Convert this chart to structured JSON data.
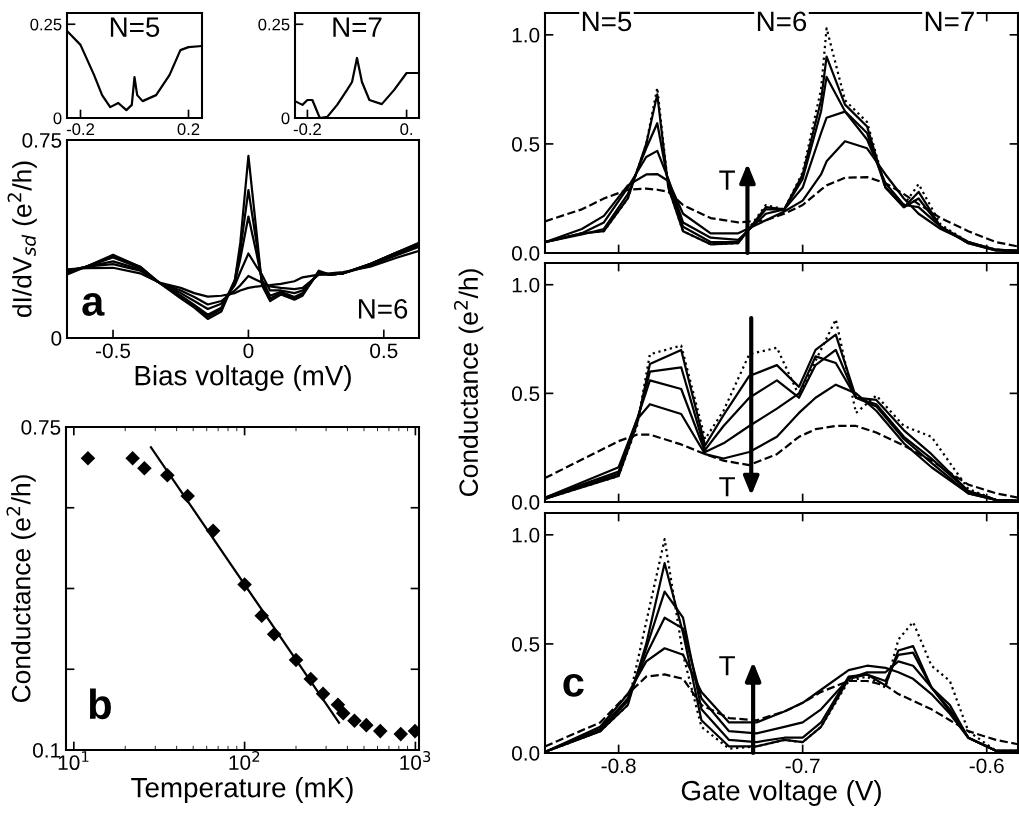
{
  "chart_data": [
    {
      "type": "line",
      "xlabel": "Bias voltage (mV)",
      "ylabel": "dI/dV$_{sd}$ (e$^{2}$/h)",
      "annotations": [
        "a",
        "N=6"
      ],
      "x": [
        -0.67,
        -0.6,
        -0.5,
        -0.4,
        -0.33,
        -0.25,
        -0.2,
        -0.15,
        -0.1,
        -0.05,
        -0.03,
        0,
        0.03,
        0.05,
        0.08,
        0.12,
        0.17,
        0.2,
        0.26,
        0.3,
        0.35,
        0.45,
        0.55,
        0.63
      ],
      "xlim": [
        -0.67,
        0.63
      ],
      "xticks": [
        -0.5,
        0,
        0.5
      ],
      "ylim": [
        0,
        0.75
      ],
      "yticks": [
        0,
        0.75
      ],
      "grid": false,
      "legend": false,
      "series": [
        {
          "color": "#000000",
          "values": [
            0.24,
            0.27,
            0.315,
            0.27,
            0.21,
            0.15,
            0.115,
            0.072,
            0.1,
            0.22,
            0.36,
            0.69,
            0.4,
            0.2,
            0.14,
            0.165,
            0.145,
            0.16,
            0.255,
            0.24,
            0.245,
            0.28,
            0.325,
            0.36
          ]
        },
        {
          "color": "#000000",
          "values": [
            0.245,
            0.27,
            0.31,
            0.27,
            0.21,
            0.155,
            0.12,
            0.08,
            0.11,
            0.22,
            0.33,
            0.56,
            0.36,
            0.21,
            0.15,
            0.17,
            0.15,
            0.165,
            0.25,
            0.24,
            0.245,
            0.28,
            0.325,
            0.36
          ]
        },
        {
          "color": "#000000",
          "values": [
            0.25,
            0.27,
            0.305,
            0.265,
            0.21,
            0.16,
            0.125,
            0.088,
            0.115,
            0.21,
            0.3,
            0.46,
            0.32,
            0.22,
            0.16,
            0.175,
            0.155,
            0.17,
            0.25,
            0.24,
            0.245,
            0.28,
            0.325,
            0.355
          ]
        },
        {
          "color": "#000000",
          "values": [
            0.25,
            0.27,
            0.29,
            0.26,
            0.21,
            0.17,
            0.14,
            0.11,
            0.13,
            0.2,
            0.25,
            0.32,
            0.27,
            0.24,
            0.18,
            0.18,
            0.17,
            0.18,
            0.245,
            0.24,
            0.245,
            0.28,
            0.32,
            0.35
          ]
        },
        {
          "color": "#000000",
          "values": [
            0.255,
            0.27,
            0.28,
            0.255,
            0.21,
            0.18,
            0.155,
            0.127,
            0.14,
            0.18,
            0.2,
            0.235,
            0.22,
            0.21,
            0.195,
            0.19,
            0.185,
            0.19,
            0.24,
            0.24,
            0.245,
            0.275,
            0.315,
            0.345
          ]
        },
        {
          "color": "#000000",
          "values": [
            0.26,
            0.265,
            0.266,
            0.245,
            0.21,
            0.19,
            0.17,
            0.157,
            0.16,
            0.17,
            0.18,
            0.19,
            0.195,
            0.197,
            0.2,
            0.205,
            0.215,
            0.23,
            0.24,
            0.245,
            0.25,
            0.27,
            0.305,
            0.33
          ]
        }
      ]
    },
    {
      "type": "line",
      "annotations": [
        "N=5"
      ],
      "x": [
        -0.25,
        -0.2,
        -0.15,
        -0.12,
        -0.09,
        -0.06,
        -0.03,
        -0.01,
        0,
        0.01,
        0.03,
        0.08,
        0.13,
        0.17,
        0.2,
        0.25
      ],
      "xlim": [
        -0.25,
        0.25
      ],
      "xticks": [
        -0.2,
        0.2
      ],
      "ylim": [
        0,
        0.28
      ],
      "yticks": [
        0,
        0.25
      ],
      "series": [
        {
          "color": "#000000",
          "values": [
            0.232,
            0.195,
            0.115,
            0.061,
            0.029,
            0.04,
            0.021,
            0.035,
            0.109,
            0.061,
            0.045,
            0.061,
            0.115,
            0.181,
            0.189,
            0.192
          ]
        }
      ]
    },
    {
      "type": "line",
      "annotations": [
        "N=7"
      ],
      "x": [
        -0.25,
        -0.22,
        -0.2,
        -0.18,
        -0.15,
        -0.12,
        -0.08,
        -0.04,
        -0.02,
        0,
        0.02,
        0.05,
        0.1,
        0.15,
        0.2,
        0.25
      ],
      "xlim": [
        -0.25,
        0.25
      ],
      "xticks": [
        -0.2,
        {
          "value": 0.2,
          "label": "0."
        }
      ],
      "ylim": [
        0,
        0.28
      ],
      "yticks": [
        0,
        0.25
      ],
      "series": [
        {
          "color": "#000000",
          "values": [
            0.045,
            0.035,
            0.048,
            0.048,
            0.0,
            0.003,
            0.035,
            0.075,
            0.096,
            0.16,
            0.096,
            0.048,
            0.037,
            0.075,
            0.12,
            0.12
          ]
        }
      ]
    },
    {
      "type": "scatter",
      "xlabel": "Temperature (mK)",
      "ylabel": "Conductance (e$^{2}$/h)",
      "annotations": [
        "b"
      ],
      "log": "x",
      "xlim": [
        9,
        1050
      ],
      "xticks": [
        {
          "value": 10,
          "label": "10$^{1}$"
        },
        {
          "value": 100,
          "label": "10$^{2}$"
        },
        {
          "value": 1000,
          "label": "10$^{3}$"
        }
      ],
      "ylim": [
        0.1,
        0.75
      ],
      "yticks": [
        0.1,
        {
          "value": 0.2625,
          "label": null
        },
        {
          "value": 0.425,
          "label": null
        },
        {
          "value": 0.5875,
          "label": null
        },
        0.75
      ],
      "series": [
        {
          "color": "#000000",
          "marker": "diamond",
          "x": [
            12.1,
            22.1,
            25.9,
            35.3,
            46.4,
            65.4,
            100,
            126,
            149,
            200,
            244,
            288,
            352,
            378,
            440,
            516,
            623,
            821,
            995
          ],
          "values": [
            0.687,
            0.687,
            0.667,
            0.653,
            0.611,
            0.541,
            0.433,
            0.37,
            0.333,
            0.281,
            0.243,
            0.213,
            0.191,
            0.174,
            0.159,
            0.15,
            0.138,
            0.132,
            0.138
          ]
        },
        {
          "type": "line",
          "color": "#000000",
          "x": [
            28.3,
            357
          ],
          "values": [
            0.709,
            0.155
          ]
        }
      ]
    },
    {
      "type": "line",
      "annotations": [
        "N=5",
        "N=6",
        "N=7",
        "T"
      ],
      "x": [
        -0.84,
        -0.82,
        -0.808,
        -0.795,
        -0.785,
        -0.779,
        -0.773,
        -0.765,
        -0.75,
        -0.735,
        -0.72,
        -0.71,
        -0.7,
        -0.69,
        -0.687,
        -0.677,
        -0.665,
        -0.655,
        -0.645,
        -0.637,
        -0.625,
        -0.61,
        -0.595,
        -0.583
      ],
      "xlim": [
        -0.84,
        -0.583
      ],
      "xticks": [
        -0.8,
        -0.7,
        -0.6
      ],
      "ylim": [
        0,
        1.1
      ],
      "yticks": [
        {
          "value": 0,
          "label": "0.0"
        },
        {
          "value": 0.5,
          "label": "0.5"
        },
        {
          "value": 1,
          "label": "1.0"
        }
      ],
      "tick_labels": "y",
      "series": [
        {
          "color": "#000000",
          "line_style": "dotted",
          "values": [
            0.05,
            0.09,
            0.1,
            0.25,
            0.5,
            0.757,
            0.3,
            0.1,
            0.04,
            0.045,
            0.22,
            0.2,
            0.37,
            0.75,
            1.03,
            0.7,
            0.6,
            0.3,
            0.22,
            0.316,
            0.13,
            0.05,
            0.015,
            0.01
          ]
        },
        {
          "color": "#000000",
          "line_style": "solid",
          "values": [
            0.05,
            0.09,
            0.1,
            0.25,
            0.5,
            0.727,
            0.3,
            0.1,
            0.04,
            0.045,
            0.21,
            0.2,
            0.36,
            0.7,
            0.9,
            0.68,
            0.58,
            0.3,
            0.21,
            0.28,
            0.12,
            0.045,
            0.012,
            0.01
          ]
        },
        {
          "color": "#000000",
          "line_style": "solid",
          "values": [
            0.05,
            0.085,
            0.11,
            0.27,
            0.48,
            0.595,
            0.32,
            0.12,
            0.05,
            0.05,
            0.2,
            0.2,
            0.34,
            0.65,
            0.807,
            0.65,
            0.55,
            0.3,
            0.21,
            0.25,
            0.12,
            0.045,
            0.012,
            0.01
          ]
        },
        {
          "color": "#000000",
          "line_style": "solid",
          "values": [
            0.05,
            0.09,
            0.14,
            0.3,
            0.44,
            0.468,
            0.34,
            0.14,
            0.07,
            0.06,
            0.18,
            0.2,
            0.3,
            0.55,
            0.62,
            0.648,
            0.52,
            0.32,
            0.22,
            0.21,
            0.12,
            0.05,
            0.015,
            0.01
          ]
        },
        {
          "color": "#000000",
          "line_style": "solid",
          "values": [
            0.05,
            0.11,
            0.17,
            0.31,
            0.36,
            0.362,
            0.33,
            0.18,
            0.09,
            0.09,
            0.15,
            0.19,
            0.24,
            0.36,
            0.42,
            0.512,
            0.48,
            0.36,
            0.25,
            0.18,
            0.11,
            0.05,
            0.015,
            0.01
          ]
        },
        {
          "color": "#000000",
          "line_style": "dashed",
          "values": [
            0.145,
            0.2,
            0.25,
            0.29,
            0.295,
            0.29,
            0.28,
            0.22,
            0.16,
            0.14,
            0.15,
            0.18,
            0.22,
            0.29,
            0.31,
            0.345,
            0.348,
            0.32,
            0.27,
            0.224,
            0.16,
            0.1,
            0.05,
            0.03
          ]
        }
      ]
    },
    {
      "type": "line",
      "ylabel": "Conductance (e$^{2}$/h)",
      "annotations": [
        "T"
      ],
      "x": [
        -0.84,
        -0.8,
        -0.79,
        -0.783,
        -0.766,
        -0.753,
        -0.743,
        -0.729,
        -0.714,
        -0.702,
        -0.693,
        -0.682,
        -0.671,
        -0.66,
        -0.645,
        -0.63,
        -0.61,
        -0.595,
        -0.583
      ],
      "xlim": [
        -0.84,
        -0.583
      ],
      "xticks": [
        -0.8,
        -0.7,
        -0.6
      ],
      "ylim": [
        0,
        1.1
      ],
      "yticks": [
        {
          "value": 0,
          "label": "0.0"
        },
        {
          "value": 0.5,
          "label": "0.5"
        },
        {
          "value": 1,
          "label": "1.0"
        }
      ],
      "tick_labels": "y",
      "series": [
        {
          "color": "#000000",
          "line_style": "dotted",
          "values": [
            0.015,
            0.12,
            0.35,
            0.68,
            0.72,
            0.29,
            0.42,
            0.68,
            0.71,
            0.49,
            0.65,
            0.84,
            0.41,
            0.49,
            0.35,
            0.3,
            0.06,
            0.01,
            0.005
          ]
        },
        {
          "color": "#000000",
          "line_style": "solid",
          "values": [
            0.015,
            0.12,
            0.36,
            0.635,
            0.7,
            0.26,
            0.4,
            0.58,
            0.63,
            0.53,
            0.7,
            0.77,
            0.48,
            0.47,
            0.33,
            0.22,
            0.05,
            0.01,
            0.005
          ]
        },
        {
          "color": "#000000",
          "line_style": "solid",
          "values": [
            0.015,
            0.13,
            0.37,
            0.6,
            0.62,
            0.24,
            0.35,
            0.48,
            0.56,
            0.48,
            0.63,
            0.7,
            0.48,
            0.45,
            0.3,
            0.2,
            0.05,
            0.01,
            0.005
          ]
        },
        {
          "color": "#000000",
          "line_style": "solid",
          "values": [
            0.02,
            0.14,
            0.38,
            0.56,
            0.52,
            0.23,
            0.27,
            0.35,
            0.43,
            0.5,
            0.67,
            0.64,
            0.48,
            0.44,
            0.29,
            0.18,
            0.04,
            0.01,
            0.005
          ]
        },
        {
          "color": "#000000",
          "line_style": "solid",
          "values": [
            0.02,
            0.16,
            0.38,
            0.45,
            0.405,
            0.22,
            0.2,
            0.23,
            0.3,
            0.41,
            0.48,
            0.54,
            0.5,
            0.42,
            0.27,
            0.16,
            0.04,
            0.01,
            0.005
          ]
        },
        {
          "color": "#000000",
          "line_style": "dashed",
          "values": [
            0.11,
            0.28,
            0.31,
            0.31,
            0.265,
            0.22,
            0.19,
            0.17,
            0.22,
            0.3,
            0.335,
            0.35,
            0.35,
            0.32,
            0.26,
            0.19,
            0.08,
            0.04,
            0.02
          ]
        }
      ]
    },
    {
      "type": "line",
      "xlabel": "Gate voltage (V)",
      "annotations": [
        "c",
        "T"
      ],
      "x": [
        -0.84,
        -0.81,
        -0.795,
        -0.785,
        -0.775,
        -0.765,
        -0.755,
        -0.74,
        -0.725,
        -0.71,
        -0.7,
        -0.69,
        -0.675,
        -0.665,
        -0.655,
        -0.648,
        -0.64,
        -0.63,
        -0.62,
        -0.61,
        -0.595,
        -0.583
      ],
      "xlim": [
        -0.84,
        -0.583
      ],
      "xticks": [
        -0.8,
        -0.7,
        -0.6
      ],
      "ylim": [
        0,
        1.1
      ],
      "yticks": [
        {
          "value": 0,
          "label": "0.0"
        },
        {
          "value": 0.5,
          "label": "0.5"
        },
        {
          "value": 1,
          "label": "1.0"
        }
      ],
      "series": [
        {
          "color": "#000000",
          "line_style": "dotted",
          "values": [
            0.005,
            0.1,
            0.22,
            0.6,
            0.98,
            0.45,
            0.12,
            0.02,
            0.03,
            0.06,
            0.05,
            0.12,
            0.33,
            0.35,
            0.3,
            0.52,
            0.6,
            0.4,
            0.33,
            0.1,
            0.01,
            0.01
          ]
        },
        {
          "color": "#000000",
          "line_style": "solid",
          "values": [
            0.005,
            0.1,
            0.22,
            0.5,
            0.87,
            0.55,
            0.15,
            0.03,
            0.03,
            0.06,
            0.05,
            0.12,
            0.34,
            0.36,
            0.31,
            0.47,
            0.49,
            0.3,
            0.22,
            0.07,
            0.01,
            0.01
          ]
        },
        {
          "color": "#000000",
          "line_style": "solid",
          "values": [
            0.005,
            0.1,
            0.24,
            0.48,
            0.74,
            0.62,
            0.2,
            0.06,
            0.05,
            0.07,
            0.07,
            0.14,
            0.35,
            0.36,
            0.33,
            0.45,
            0.46,
            0.3,
            0.2,
            0.07,
            0.01,
            0.01
          ]
        },
        {
          "color": "#000000",
          "line_style": "solid",
          "values": [
            0.005,
            0.11,
            0.25,
            0.45,
            0.62,
            0.57,
            0.25,
            0.1,
            0.09,
            0.12,
            0.14,
            0.2,
            0.34,
            0.37,
            0.37,
            0.42,
            0.4,
            0.3,
            0.19,
            0.07,
            0.01,
            0.01
          ]
        },
        {
          "color": "#000000",
          "line_style": "solid",
          "values": [
            0.005,
            0.12,
            0.27,
            0.42,
            0.48,
            0.45,
            0.28,
            0.14,
            0.14,
            0.19,
            0.23,
            0.29,
            0.38,
            0.4,
            0.39,
            0.37,
            0.34,
            0.27,
            0.18,
            0.07,
            0.01,
            0.01
          ]
        },
        {
          "color": "#000000",
          "line_style": "dashed",
          "values": [
            0.03,
            0.14,
            0.27,
            0.35,
            0.36,
            0.34,
            0.22,
            0.16,
            0.15,
            0.19,
            0.23,
            0.28,
            0.33,
            0.33,
            0.31,
            0.27,
            0.24,
            0.2,
            0.15,
            0.1,
            0.06,
            0.04
          ]
        }
      ]
    }
  ]
}
